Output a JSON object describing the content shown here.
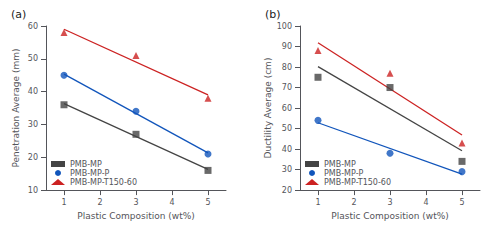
{
  "chart_data": [
    {
      "type": "scatter",
      "title": "(a)",
      "x_label": "Plastic Composition (wt%)",
      "y_label": "Penetration Average (mm)",
      "x": [
        1,
        3,
        5
      ],
      "xlim": [
        0.5,
        5.5
      ],
      "xticks": [
        1,
        2,
        3,
        4,
        5
      ],
      "ylim": [
        10,
        60
      ],
      "yticks": [
        10,
        20,
        30,
        40,
        50,
        60
      ],
      "grid": false,
      "legend": "lower left",
      "fit_x": [
        1,
        5
      ],
      "series": [
        {
          "name": "PMB-MP",
          "color": "#444444",
          "marker": "square",
          "values": [
            36,
            27,
            16
          ],
          "fit_values": [
            36.33333333333333,
            16.33333333333333
          ]
        },
        {
          "name": "PMB-MP-P",
          "color": "#1155bb",
          "marker": "circle",
          "values": [
            45,
            34,
            21
          ],
          "fit_values": [
            45.33333333333333,
            21.33333333333333
          ]
        },
        {
          "name": "PMB-MP-T150-60",
          "color": "#cc2222",
          "marker": "triangle",
          "values": [
            58,
            51,
            38
          ],
          "fit_values": [
            59,
            39
          ]
        }
      ]
    },
    {
      "type": "scatter",
      "title": "(b)",
      "x_label": "Plastic Composition (wt%)",
      "y_label": "Ductility Average (cm)",
      "x": [
        1,
        3,
        5
      ],
      "xlim": [
        0.5,
        5.5
      ],
      "xticks": [
        1,
        2,
        3,
        4,
        5
      ],
      "ylim": [
        20,
        100
      ],
      "yticks": [
        20,
        30,
        40,
        50,
        60,
        70,
        80,
        90,
        100
      ],
      "grid": false,
      "legend": "lower left",
      "fit_x": [
        1,
        5
      ],
      "series": [
        {
          "name": "PMB-MP",
          "color": "#444444",
          "marker": "square",
          "values": [
            75,
            70,
            34
          ],
          "fit_values": [
            80.16666666666667,
            39.16666666666667
          ]
        },
        {
          "name": "PMB-MP-P",
          "color": "#1155bb",
          "marker": "circle",
          "values": [
            54,
            38,
            29
          ],
          "fit_values": [
            52.83333333333333,
            27.83333333333333
          ]
        },
        {
          "name": "PMB-MP-T150-60",
          "color": "#cc2222",
          "marker": "triangle",
          "values": [
            88,
            77,
            43
          ],
          "fit_values": [
            91.83333333333333,
            46.83333333333333
          ]
        }
      ]
    }
  ]
}
